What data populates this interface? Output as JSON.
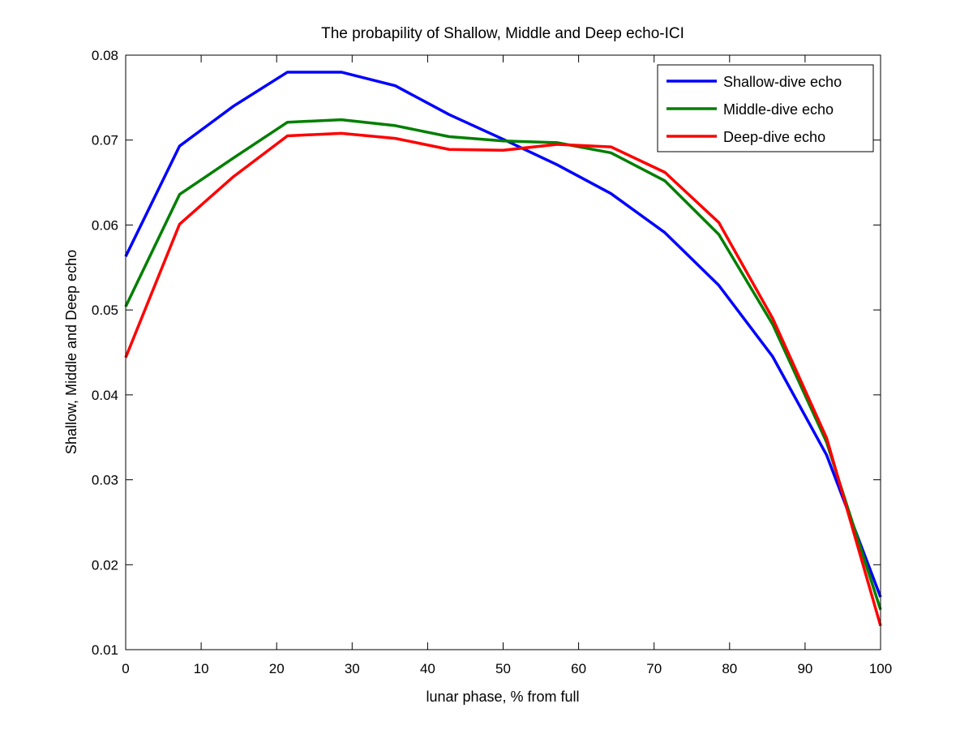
{
  "chart_data": {
    "type": "line",
    "title": "The probapility of Shallow, Middle and Deep echo-ICI",
    "xlabel": "lunar phase, % from full",
    "ylabel": "Shallow, Middle and Deep echo",
    "xlim": [
      0,
      100
    ],
    "ylim": [
      0.01,
      0.08
    ],
    "xticks": [
      "0",
      "10",
      "20",
      "30",
      "40",
      "50",
      "60",
      "70",
      "80",
      "90",
      "100"
    ],
    "yticks": [
      "0.01",
      "0.02",
      "0.03",
      "0.04",
      "0.05",
      "0.06",
      "0.07",
      "0.08"
    ],
    "grid": false,
    "legend_position": "top-right",
    "x": [
      0,
      7.14,
      14.29,
      21.43,
      28.57,
      35.71,
      42.86,
      50,
      57.14,
      64.29,
      71.43,
      78.57,
      85.71,
      92.86,
      100
    ],
    "series": [
      {
        "name": "Shallow-dive echo",
        "color": "#0000ff",
        "values": [
          0.0563,
          0.0693,
          0.074,
          0.078,
          0.078,
          0.0764,
          0.073,
          0.0701,
          0.0671,
          0.0637,
          0.0591,
          0.0529,
          0.0445,
          0.0329,
          0.0162
        ]
      },
      {
        "name": "Middle-dive echo",
        "color": "#007f00",
        "values": [
          0.0504,
          0.0636,
          0.0679,
          0.0721,
          0.0724,
          0.0717,
          0.0704,
          0.0699,
          0.0697,
          0.0685,
          0.0652,
          0.0589,
          0.0483,
          0.0344,
          0.0147
        ]
      },
      {
        "name": "Deep-dive echo",
        "color": "#ff0000",
        "values": [
          0.0444,
          0.0601,
          0.0657,
          0.0705,
          0.0708,
          0.0702,
          0.0689,
          0.0688,
          0.0695,
          0.0692,
          0.0662,
          0.0603,
          0.049,
          0.0349,
          0.0128
        ]
      }
    ]
  }
}
